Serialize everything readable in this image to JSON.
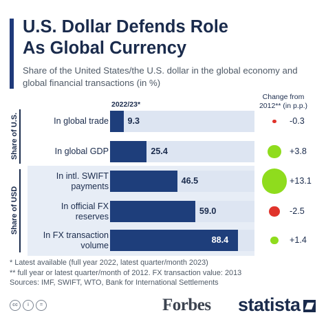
{
  "header": {
    "title_line1": "U.S. Dollar Defends Role",
    "title_line2": "As Global Currency",
    "subtitle": "Share of the United States/the U.S. dollar in the global economy and global financial transactions (in %)"
  },
  "chart_data": {
    "type": "bar",
    "orientation": "horizontal",
    "period_label": "2022/23*",
    "change_header_line1": "Change from",
    "change_header_line2": "2012** (in p.p.)",
    "xlim": [
      0,
      100
    ],
    "groups": [
      {
        "label": "Share of U.S.",
        "rows": [
          0,
          1
        ]
      },
      {
        "label": "Share of USD",
        "rows": [
          2,
          3,
          4
        ]
      }
    ],
    "categories": [
      "In global trade",
      "In global GDP",
      "In intl. SWIFT payments",
      "In official FX reserves",
      "In FX transaction volume"
    ],
    "category_lines": [
      [
        "In global trade"
      ],
      [
        "In global GDP"
      ],
      [
        "In intl. SWIFT",
        "payments"
      ],
      [
        "In official FX",
        "reserves"
      ],
      [
        "In FX transaction",
        "volume"
      ]
    ],
    "values": [
      9.3,
      25.4,
      46.5,
      59.0,
      88.4
    ],
    "value_labels": [
      "9.3",
      "25.4",
      "46.5",
      "59.0",
      "88.4"
    ],
    "changes": [
      -0.3,
      3.8,
      13.1,
      -2.5,
      1.4
    ],
    "change_labels": [
      "-0.3",
      "+3.8",
      "+13.1",
      "-2.5",
      "+1.4"
    ]
  },
  "colors": {
    "bar": "#1e3e7b",
    "increase": "#8fdc1d",
    "decrease": "#e0332b"
  },
  "footnotes": [
    "*   Latest available (full year 2022, latest quarter/month 2023)",
    "** full year or latest quarter/month of 2012. FX transaction value: 2013",
    "Sources: IMF, SWIFT, WTO, Bank for International Settlements"
  ],
  "branding": {
    "forbes": "Forbes",
    "statista": "statista",
    "license_icons": [
      "cc",
      "i",
      "="
    ]
  }
}
